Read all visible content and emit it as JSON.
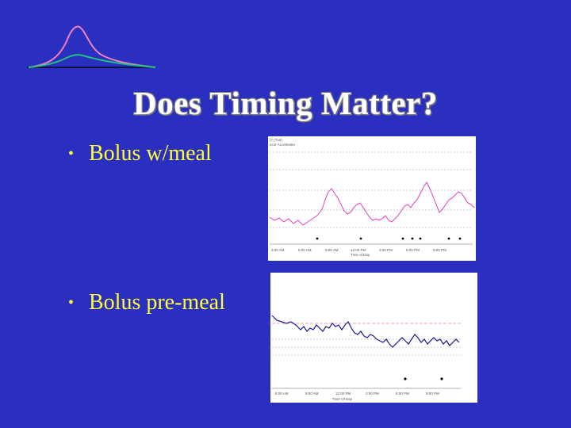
{
  "slide": {
    "title": "Does Timing Matter?",
    "bullets": [
      {
        "text": "Bolus w/meal"
      },
      {
        "text": "Bolus pre-meal"
      }
    ]
  },
  "colors": {
    "background": "#2b2fc0",
    "bullet_text": "#ffff33",
    "title_text": "#ffffff",
    "chart1_line": "#e040c0",
    "chart2_line": "#1a1a90",
    "logo_pink": "#f080c0",
    "logo_green": "#20c080"
  },
  "chart1": {
    "header_lines": [
      "(7 (Tue)",
      "ecor Accelmeter"
    ],
    "x_ticks": [
      "3:00 AM",
      "6:00 AM",
      "9:00 AM",
      "12:00 PM",
      "3:00 PM",
      "6:00 PM",
      "9:00 PM"
    ],
    "x_label": "Time of Day"
  },
  "chart2": {
    "x_ticks": [
      "6:00 AM",
      "9:00 AM",
      "12:00 PM",
      "3:00 PM",
      "6:00 PM",
      "9:00 PM"
    ],
    "x_label": "Time Of Day"
  }
}
